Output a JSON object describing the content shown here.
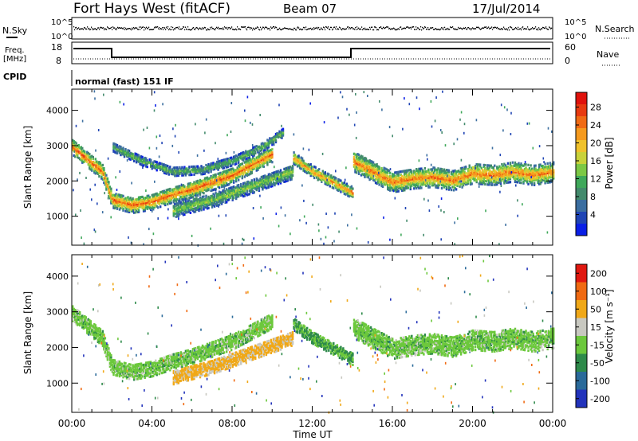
{
  "header": {
    "title": "Fort Hays West (fitACF)",
    "beam": "Beam 07",
    "date": "17/Jul/2014"
  },
  "panels": {
    "nsky": {
      "label": "N.Sky",
      "right_label": "N.Search",
      "left_ticks": [
        "10^5",
        "10^0"
      ],
      "right_ticks": [
        "10^5",
        "10^0"
      ]
    },
    "freq": {
      "label_line1": "Freq.",
      "label_line2": "[MHz]",
      "right_label": "Nave",
      "left_ticks": [
        "18",
        "8"
      ],
      "right_ticks": [
        "60",
        "0"
      ]
    },
    "cpid": {
      "label": "CPID",
      "mode": "normal (fast) 151 IF"
    }
  },
  "chart_data": [
    {
      "type": "heatmap",
      "name": "power",
      "ylabel": "Slant Range [km]",
      "xlabel": "",
      "x_ticks": [
        "00:00",
        "04:00",
        "08:00",
        "12:00",
        "16:00",
        "20:00",
        "00:00"
      ],
      "x_hours": [
        0,
        4,
        8,
        12,
        16,
        20,
        24
      ],
      "y_ticks": [
        1000,
        2000,
        3000,
        4000
      ],
      "ylim": [
        180,
        4600
      ],
      "xlim": [
        0,
        24
      ],
      "colorbar": {
        "label": "Power [dB]",
        "ticks": [
          4,
          8,
          12,
          16,
          20,
          24,
          28
        ],
        "range": [
          0,
          32
        ],
        "colors": [
          "#0a1fe6",
          "#1f44b4",
          "#3b6ea0",
          "#438a6c",
          "#3fa85a",
          "#7cc845",
          "#c9d23a",
          "#f0c22c",
          "#f59a1e",
          "#f06a14",
          "#e83a10",
          "#e0120c"
        ]
      },
      "bands": [
        {
          "t": [
            0.0,
            1.5,
            2.0,
            3.0,
            4.0,
            5.0,
            6.0,
            7.0,
            8.0,
            9.0,
            10.0
          ],
          "r": [
            3000,
            2300,
            1500,
            1350,
            1450,
            1650,
            1800,
            2000,
            2200,
            2500,
            2800
          ],
          "w": 220,
          "p": 26
        },
        {
          "t": [
            2.0,
            3.5,
            5.0,
            6.5,
            8.0,
            9.5,
            10.5
          ],
          "r": [
            3000,
            2600,
            2300,
            2350,
            2600,
            3000,
            3400
          ],
          "w": 120,
          "p": 14
        },
        {
          "t": [
            5.0,
            6.0,
            7.0,
            8.0,
            9.0,
            10.0,
            11.0
          ],
          "r": [
            1200,
            1350,
            1500,
            1700,
            1900,
            2100,
            2300
          ],
          "w": 200,
          "p": 16
        },
        {
          "t": [
            11.0,
            12.0,
            13.0,
            14.0
          ],
          "r": [
            2700,
            2300,
            2000,
            1700
          ],
          "w": 160,
          "p": 24
        },
        {
          "t": [
            14.0,
            15.0,
            16.0,
            17.0,
            18.0,
            19.0,
            20.0,
            21.0,
            22.0,
            23.0,
            24.0
          ],
          "r": [
            2600,
            2300,
            2000,
            2100,
            2150,
            2050,
            2250,
            2200,
            2300,
            2200,
            2300
          ],
          "w": 280,
          "p": 25
        }
      ]
    },
    {
      "type": "heatmap",
      "name": "velocity",
      "ylabel": "Slant Range [km]",
      "xlabel": "Time UT",
      "x_ticks": [
        "00:00",
        "04:00",
        "08:00",
        "12:00",
        "16:00",
        "20:00",
        "00:00"
      ],
      "x_hours": [
        0,
        4,
        8,
        12,
        16,
        20,
        24
      ],
      "y_ticks": [
        1000,
        2000,
        3000,
        4000
      ],
      "ylim": [
        180,
        4600
      ],
      "xlim": [
        0,
        24
      ],
      "colorbar": {
        "label": "Velocity [m s⁻¹]",
        "ticks": [
          "200",
          "100",
          "50",
          "15",
          "-15",
          "-50",
          "-100",
          "-200"
        ],
        "colors": [
          "#2233bb",
          "#2a6a9a",
          "#2e8a4a",
          "#6cc83c",
          "#c8c8c0",
          "#f0a818",
          "#f06a12",
          "#e01810"
        ]
      },
      "bands": [
        {
          "t": [
            0.0,
            1.5,
            2.0,
            3.0,
            4.0,
            5.0,
            6.0,
            7.0,
            8.0,
            9.0,
            10.0
          ],
          "r": [
            3000,
            2300,
            1500,
            1350,
            1450,
            1650,
            1800,
            2000,
            2200,
            2500,
            2800
          ],
          "w": 220,
          "v": 0
        },
        {
          "t": [
            5.0,
            6.0,
            7.0,
            8.0,
            9.0,
            10.0,
            11.0
          ],
          "r": [
            1200,
            1350,
            1500,
            1700,
            1900,
            2100,
            2300
          ],
          "w": 200,
          "v": -60
        },
        {
          "t": [
            11.0,
            12.0,
            13.0,
            14.0
          ],
          "r": [
            2700,
            2300,
            2000,
            1700
          ],
          "w": 160,
          "v": 20
        },
        {
          "t": [
            14.0,
            15.0,
            16.0,
            17.0,
            18.0,
            19.0,
            20.0,
            21.0,
            22.0,
            23.0,
            24.0
          ],
          "r": [
            2600,
            2300,
            2000,
            2100,
            2150,
            2050,
            2250,
            2200,
            2300,
            2200,
            2300
          ],
          "w": 280,
          "v": 0
        }
      ]
    }
  ]
}
